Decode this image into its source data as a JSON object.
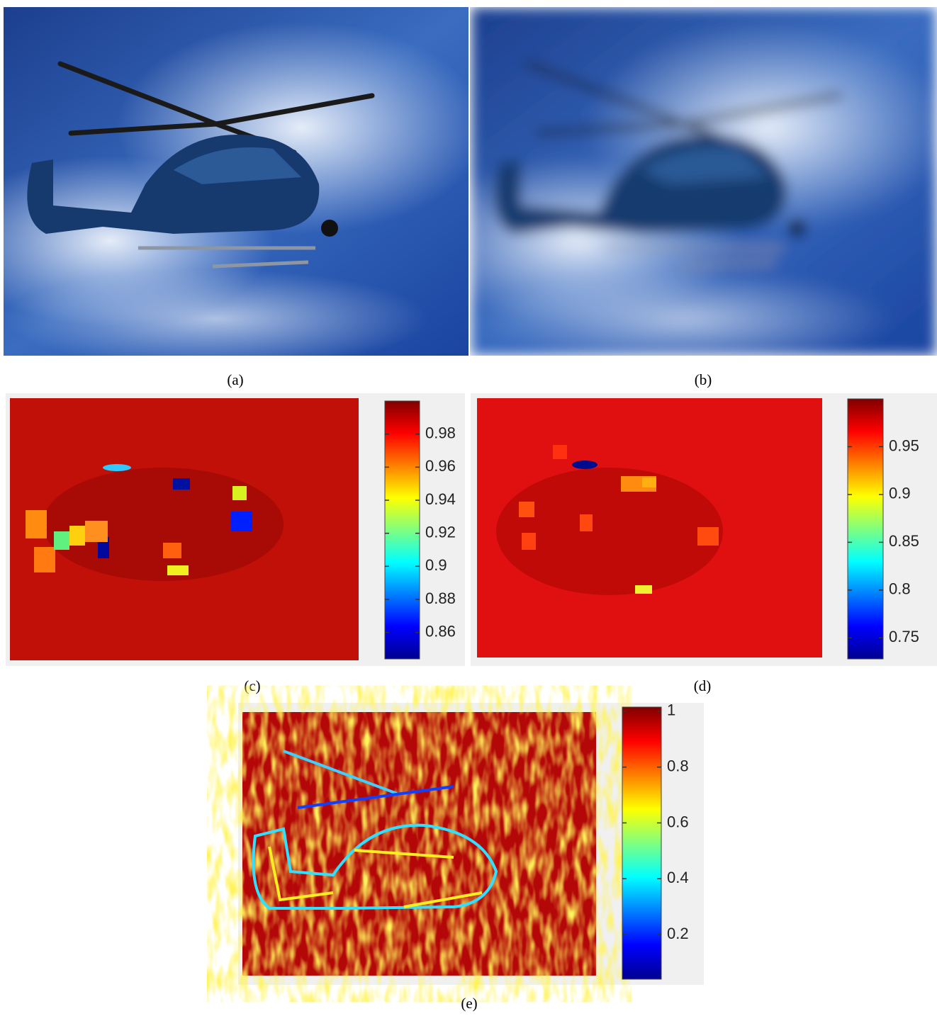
{
  "panels": [
    {
      "label": "(a)"
    },
    {
      "label": "(b)"
    },
    {
      "label": "(c)",
      "colorbar": {
        "lim": [
          0.844,
          1.0
        ],
        "ticks": [
          0.86,
          0.88,
          0.9,
          0.92,
          0.94,
          0.96,
          0.98
        ]
      }
    },
    {
      "label": "(d)",
      "colorbar": {
        "lim": [
          0.728,
          1.0
        ],
        "ticks": [
          0.75,
          0.8,
          0.85,
          0.9,
          0.95
        ]
      }
    },
    {
      "label": "(e)",
      "colorbar": {
        "lim": [
          0.04,
          1.015
        ],
        "ticks": [
          0.2,
          0.4,
          0.6,
          0.8,
          1
        ]
      }
    }
  ]
}
